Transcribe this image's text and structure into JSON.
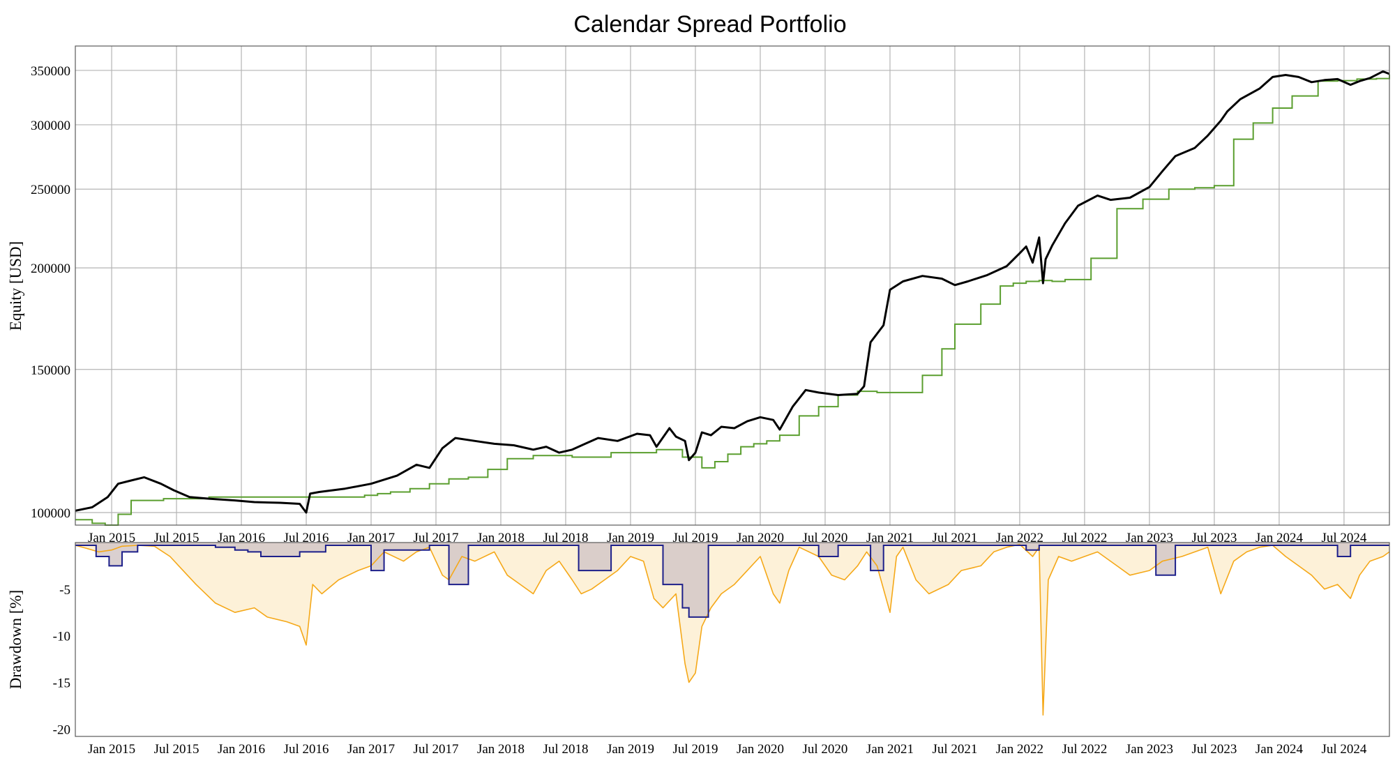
{
  "chart_data": [
    {
      "type": "line",
      "title": "Calendar Spread Portfolio",
      "ylabel": "Equity [USD]",
      "x_tick_labels": [
        "Jan 2015",
        "Jul 2015",
        "Jan 2016",
        "Jul 2016",
        "Jan 2017",
        "Jul 2017",
        "Jan 2018",
        "Jul 2018",
        "Jan 2019",
        "Jul 2019",
        "Jan 2020",
        "Jul 2020",
        "Jan 2021",
        "Jul 2021",
        "Jan 2022",
        "Jul 2022",
        "Jan 2023",
        "Jul 2023",
        "Jan 2024",
        "Jul 2024"
      ],
      "y_scale": "log",
      "y_ticks": [
        100000,
        150000,
        200000,
        250000,
        300000,
        350000
      ],
      "y_tick_labels": [
        "100000",
        "150000",
        "200000",
        "250000",
        "300000",
        "350000"
      ],
      "ylim": [
        96500,
        375000
      ],
      "xlim": [
        2014.72,
        2024.85
      ],
      "grid": true,
      "series": [
        {
          "color": "#000000",
          "x": [
            2014.72,
            2014.85,
            2014.97,
            2015.05,
            2015.15,
            2015.25,
            2015.38,
            2015.48,
            2015.6,
            2015.75,
            2015.95,
            2016.1,
            2016.3,
            2016.45,
            2016.5,
            2016.53,
            2016.6,
            2016.8,
            2017.0,
            2017.2,
            2017.35,
            2017.45,
            2017.55,
            2017.65,
            2017.8,
            2017.95,
            2018.1,
            2018.25,
            2018.35,
            2018.45,
            2018.55,
            2018.65,
            2018.75,
            2018.9,
            2019.05,
            2019.15,
            2019.2,
            2019.3,
            2019.35,
            2019.42,
            2019.45,
            2019.5,
            2019.55,
            2019.62,
            2019.7,
            2019.8,
            2019.9,
            2020.0,
            2020.1,
            2020.15,
            2020.25,
            2020.35,
            2020.45,
            2020.6,
            2020.75,
            2020.8,
            2020.85,
            2020.95,
            2021.0,
            2021.1,
            2021.25,
            2021.4,
            2021.5,
            2021.6,
            2021.75,
            2021.9,
            2022.0,
            2022.05,
            2022.1,
            2022.15,
            2022.18,
            2022.2,
            2022.25,
            2022.35,
            2022.45,
            2022.6,
            2022.7,
            2022.85,
            2023.0,
            2023.1,
            2023.2,
            2023.35,
            2023.45,
            2023.55,
            2023.6,
            2023.7,
            2023.85,
            2023.95,
            2024.05,
            2024.15,
            2024.25,
            2024.35,
            2024.45,
            2024.55,
            2024.62,
            2024.7,
            2024.8,
            2024.85
          ],
          "y": [
            100500,
            101500,
            104500,
            108500,
            109500,
            110500,
            108500,
            106500,
            104500,
            104000,
            103500,
            103000,
            102800,
            102500,
            100000,
            105500,
            106000,
            107000,
            108500,
            111000,
            114500,
            113500,
            120000,
            123500,
            122500,
            121500,
            121000,
            119500,
            120500,
            118500,
            119500,
            121500,
            123500,
            122500,
            125000,
            124500,
            120500,
            127000,
            124000,
            122500,
            116000,
            118500,
            125500,
            124500,
            127500,
            127000,
            129500,
            131000,
            130000,
            126500,
            135000,
            141500,
            140500,
            139500,
            140000,
            143000,
            162000,
            170000,
            188000,
            192500,
            195500,
            194000,
            190500,
            192500,
            196000,
            201000,
            208500,
            212500,
            203000,
            218000,
            191500,
            205000,
            213000,
            227000,
            238500,
            245500,
            242500,
            244000,
            251500,
            263000,
            274500,
            281000,
            291000,
            303500,
            311500,
            322500,
            332500,
            343500,
            345500,
            343500,
            338500,
            340500,
            341500,
            336000,
            339500,
            342500,
            349000,
            346500
          ]
        },
        {
          "color": "#5a9e2e",
          "x": [
            2014.72,
            2014.85,
            2014.95,
            2015.05,
            2015.15,
            2015.4,
            2015.55,
            2015.75,
            2015.95,
            2016.15,
            2016.35,
            2016.55,
            2016.75,
            2016.95,
            2017.05,
            2017.15,
            2017.3,
            2017.45,
            2017.6,
            2017.75,
            2017.9,
            2018.05,
            2018.25,
            2018.4,
            2018.55,
            2018.7,
            2018.85,
            2019.0,
            2019.2,
            2019.4,
            2019.55,
            2019.65,
            2019.75,
            2019.85,
            2019.95,
            2020.05,
            2020.15,
            2020.3,
            2020.45,
            2020.6,
            2020.75,
            2020.9,
            2021.0,
            2021.1,
            2021.25,
            2021.4,
            2021.5,
            2021.7,
            2021.85,
            2021.95,
            2022.05,
            2022.15,
            2022.25,
            2022.35,
            2022.55,
            2022.75,
            2022.95,
            2023.15,
            2023.35,
            2023.5,
            2023.65,
            2023.8,
            2023.95,
            2024.1,
            2024.3,
            2024.45,
            2024.6,
            2024.75,
            2024.85
          ],
          "y": [
            98000,
            97000,
            96500,
            99500,
            103500,
            104000,
            104000,
            104500,
            104500,
            104500,
            104500,
            104500,
            104500,
            105000,
            105500,
            106000,
            107000,
            108500,
            110000,
            110500,
            113000,
            116500,
            117500,
            117500,
            117000,
            117000,
            118500,
            118500,
            119500,
            117000,
            113500,
            115500,
            118000,
            120500,
            121500,
            122500,
            124500,
            131500,
            135000,
            139500,
            141000,
            140500,
            140500,
            140500,
            147500,
            159000,
            170500,
            180500,
            190000,
            191500,
            192500,
            193000,
            192500,
            193500,
            205500,
            236500,
            243000,
            250000,
            251000,
            252500,
            288000,
            301500,
            314500,
            325500,
            339500,
            340000,
            341500,
            342000,
            346000
          ]
        }
      ]
    },
    {
      "type": "area",
      "ylabel": "Drawdown [%]",
      "x_tick_labels": [
        "Jan 2015",
        "Jul 2015",
        "Jan 2016",
        "Jul 2016",
        "Jan 2017",
        "Jul 2017",
        "Jan 2018",
        "Jul 2018",
        "Jan 2019",
        "Jul 2019",
        "Jan 2020",
        "Jul 2020",
        "Jan 2021",
        "Jul 2021",
        "Jan 2022",
        "Jul 2022",
        "Jan 2023",
        "Jul 2023",
        "Jan 2024",
        "Jul 2024"
      ],
      "y_ticks": [
        -5,
        -10,
        -15,
        -20
      ],
      "y_tick_labels": [
        "-5",
        "-10",
        "-15",
        "-20"
      ],
      "ylim": [
        -20.8,
        0
      ],
      "xlim": [
        2014.72,
        2024.85
      ],
      "grid": false,
      "series": [
        {
          "color": "#f5a818",
          "fill": "#fdf1d8",
          "x": [
            2014.72,
            2014.8,
            2014.9,
            2015.0,
            2015.08,
            2015.2,
            2015.33,
            2015.45,
            2015.55,
            2015.65,
            2015.8,
            2015.95,
            2016.1,
            2016.2,
            2016.35,
            2016.45,
            2016.5,
            2016.55,
            2016.62,
            2016.75,
            2016.9,
            2017.0,
            2017.1,
            2017.25,
            2017.35,
            2017.45,
            2017.55,
            2017.6,
            2017.7,
            2017.8,
            2017.95,
            2018.05,
            2018.15,
            2018.25,
            2018.35,
            2018.45,
            2018.55,
            2018.62,
            2018.7,
            2018.8,
            2018.9,
            2019.0,
            2019.1,
            2019.18,
            2019.25,
            2019.35,
            2019.42,
            2019.45,
            2019.5,
            2019.55,
            2019.62,
            2019.7,
            2019.8,
            2019.9,
            2020.0,
            2020.1,
            2020.15,
            2020.22,
            2020.3,
            2020.45,
            2020.55,
            2020.65,
            2020.75,
            2020.82,
            2020.9,
            2021.0,
            2021.05,
            2021.1,
            2021.2,
            2021.3,
            2021.45,
            2021.55,
            2021.7,
            2021.8,
            2021.9,
            2022.0,
            2022.1,
            2022.15,
            2022.18,
            2022.22,
            2022.3,
            2022.4,
            2022.5,
            2022.6,
            2022.75,
            2022.85,
            2023.0,
            2023.1,
            2023.25,
            2023.35,
            2023.45,
            2023.55,
            2023.65,
            2023.75,
            2023.85,
            2023.95,
            2024.05,
            2024.15,
            2024.25,
            2024.35,
            2024.45,
            2024.55,
            2024.62,
            2024.7,
            2024.8,
            2024.85
          ],
          "y": [
            -0.3,
            -0.6,
            -1.0,
            -0.8,
            -0.4,
            -0.3,
            -0.4,
            -1.5,
            -3.0,
            -4.5,
            -6.5,
            -7.5,
            -7.0,
            -8.0,
            -8.5,
            -9.0,
            -11.0,
            -4.5,
            -5.5,
            -4.0,
            -3.0,
            -2.5,
            -1.0,
            -2.0,
            -1.0,
            -0.5,
            -3.5,
            -4.0,
            -1.5,
            -2.0,
            -1.0,
            -3.5,
            -4.5,
            -5.5,
            -3.0,
            -2.0,
            -4.0,
            -5.5,
            -5.0,
            -4.0,
            -3.0,
            -1.5,
            -2.0,
            -6.0,
            -7.0,
            -5.5,
            -13.0,
            -15.0,
            -14.0,
            -9.0,
            -7.0,
            -5.5,
            -4.5,
            -3.0,
            -1.5,
            -5.5,
            -6.5,
            -3.0,
            -0.5,
            -1.5,
            -3.5,
            -4.0,
            -2.5,
            -1.0,
            -2.5,
            -7.5,
            -1.5,
            -0.5,
            -4.0,
            -5.5,
            -4.5,
            -3.0,
            -2.5,
            -1.0,
            -0.5,
            -0.2,
            -1.5,
            -0.5,
            -18.5,
            -4.0,
            -1.5,
            -2.0,
            -1.5,
            -1.0,
            -2.5,
            -3.5,
            -3.0,
            -2.0,
            -1.5,
            -1.0,
            -0.5,
            -5.5,
            -2.0,
            -1.0,
            -0.5,
            -0.3,
            -1.5,
            -2.5,
            -3.5,
            -5.0,
            -4.5,
            -6.0,
            -3.5,
            -2.0,
            -1.5,
            -1.0
          ]
        },
        {
          "color": "#1c1f8a",
          "fill": "#d4c8c8",
          "x": [
            2014.72,
            2014.85,
            2014.88,
            2014.98,
            2015.08,
            2015.2,
            2015.7,
            2015.8,
            2015.95,
            2016.05,
            2016.15,
            2016.45,
            2016.65,
            2016.98,
            2017.0,
            2017.1,
            2017.45,
            2017.6,
            2017.75,
            2017.85,
            2018.1,
            2018.5,
            2018.6,
            2018.85,
            2019.25,
            2019.4,
            2019.45,
            2019.6,
            2019.75,
            2019.85,
            2020.35,
            2020.45,
            2020.6,
            2020.75,
            2020.85,
            2020.95,
            2021.1,
            2021.45,
            2021.65,
            2021.85,
            2021.95,
            2022.05,
            2022.15,
            2022.2,
            2022.95,
            2023.05,
            2023.2,
            2023.45,
            2023.95,
            2024.15,
            2024.3,
            2024.45,
            2024.55,
            2024.65,
            2024.85
          ],
          "y": [
            -0.3,
            -0.3,
            -1.5,
            -2.5,
            -1.0,
            -0.3,
            -0.3,
            -0.5,
            -0.8,
            -1.0,
            -1.5,
            -1.0,
            -0.3,
            -0.3,
            -3.0,
            -0.8,
            -0.3,
            -4.5,
            -0.3,
            -0.3,
            -0.3,
            -0.3,
            -3.0,
            -0.3,
            -4.5,
            -7.0,
            -8.0,
            -0.3,
            -0.3,
            -0.3,
            -0.3,
            -1.5,
            -0.3,
            -0.3,
            -3.0,
            -0.3,
            -0.3,
            -0.3,
            -0.3,
            -0.3,
            -0.3,
            -0.8,
            -0.3,
            -0.3,
            -0.3,
            -3.5,
            -0.3,
            -0.3,
            -0.3,
            -0.3,
            -0.3,
            -1.5,
            -0.3,
            -0.3,
            -0.3
          ]
        }
      ]
    }
  ]
}
